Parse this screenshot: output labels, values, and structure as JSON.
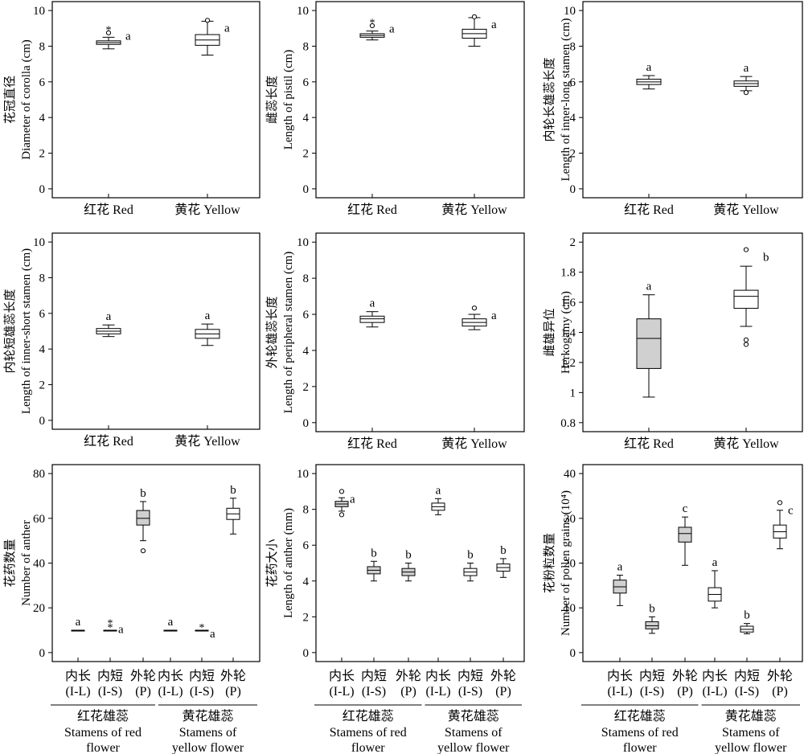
{
  "figure": {
    "background": "#ffffff",
    "box_fill_red": "#d0d0d0",
    "box_fill_white": "#ffffff",
    "stroke": "#000000"
  },
  "chart_data": [
    {
      "type": "box",
      "ylabel": [
        "花冠直径",
        "Diameter of corolla (cm)"
      ],
      "ylim": [
        -0.5,
        10.5
      ],
      "yticks": [
        0,
        2,
        4,
        6,
        8,
        10
      ],
      "categories": [
        "红花 Red",
        "黄花 Yellow"
      ],
      "boxes": [
        {
          "min": 7.85,
          "q1": 8.1,
          "median": 8.2,
          "q3": 8.3,
          "max": 8.5,
          "outliers": [
            8.75
          ],
          "extremes": [
            9.0
          ],
          "sig": "a",
          "fill": "white"
        },
        {
          "min": 7.5,
          "q1": 8.05,
          "median": 8.35,
          "q3": 8.65,
          "max": 9.4,
          "outliers": [
            9.45
          ],
          "extremes": [],
          "sig": "a",
          "fill": "white"
        }
      ]
    },
    {
      "type": "box",
      "ylabel": [
        "雌蕊长度",
        "Length of pistil (cm)"
      ],
      "ylim": [
        -0.5,
        10.5
      ],
      "yticks": [
        0,
        2,
        4,
        6,
        8,
        10
      ],
      "categories": [
        "红花 Red",
        "黄花 Yellow"
      ],
      "boxes": [
        {
          "min": 8.35,
          "q1": 8.5,
          "median": 8.6,
          "q3": 8.7,
          "max": 8.85,
          "outliers": [
            9.15
          ],
          "extremes": [
            9.4
          ],
          "sig": "a",
          "fill": "white"
        },
        {
          "min": 8.0,
          "q1": 8.45,
          "median": 8.7,
          "q3": 8.95,
          "max": 9.6,
          "outliers": [
            9.65
          ],
          "extremes": [],
          "sig": "a",
          "fill": "white"
        }
      ]
    },
    {
      "type": "box",
      "ylabel": [
        "内轮长雄蕊长度",
        "Length of inner-long stamen (cm)"
      ],
      "ylim": [
        -0.5,
        10.5
      ],
      "yticks": [
        0,
        2,
        4,
        6,
        8,
        10
      ],
      "categories": [
        "红花 Red",
        "黄花 Yellow"
      ],
      "boxes": [
        {
          "min": 5.6,
          "q1": 5.85,
          "median": 6.0,
          "q3": 6.15,
          "max": 6.35,
          "outliers": [],
          "extremes": [],
          "sig": "a",
          "fill": "white"
        },
        {
          "min": 5.5,
          "q1": 5.75,
          "median": 5.9,
          "q3": 6.05,
          "max": 6.3,
          "outliers": [
            5.4
          ],
          "extremes": [],
          "sig": "a",
          "fill": "white"
        }
      ]
    },
    {
      "type": "box",
      "ylabel": [
        "内轮短雄蕊长度",
        "Length of inner-short stamen (cm)"
      ],
      "ylim": [
        -0.5,
        10.5
      ],
      "yticks": [
        0,
        2,
        4,
        6,
        8,
        10
      ],
      "categories": [
        "红花 Red",
        "黄花 Yellow"
      ],
      "boxes": [
        {
          "min": 4.7,
          "q1": 4.85,
          "median": 5.0,
          "q3": 5.15,
          "max": 5.35,
          "outliers": [],
          "extremes": [],
          "sig": "a",
          "fill": "white"
        },
        {
          "min": 4.2,
          "q1": 4.6,
          "median": 4.85,
          "q3": 5.1,
          "max": 5.4,
          "outliers": [],
          "extremes": [],
          "sig": "a",
          "fill": "white"
        }
      ]
    },
    {
      "type": "box",
      "ylabel": [
        "外轮雄蕊长度",
        "Length of peripheral stamen (cm)"
      ],
      "ylim": [
        -0.5,
        10.5
      ],
      "yticks": [
        0,
        2,
        4,
        6,
        8,
        10
      ],
      "categories": [
        "红花 Red",
        "黄花 Yellow"
      ],
      "boxes": [
        {
          "min": 5.3,
          "q1": 5.55,
          "median": 5.75,
          "q3": 5.9,
          "max": 6.15,
          "outliers": [],
          "extremes": [],
          "sig": "a",
          "fill": "white"
        },
        {
          "min": 5.15,
          "q1": 5.35,
          "median": 5.55,
          "q3": 5.75,
          "max": 6.0,
          "outliers": [
            6.35
          ],
          "extremes": [],
          "sig": "a",
          "fill": "white"
        }
      ]
    },
    {
      "type": "box",
      "ylabel": [
        "雌雄异位",
        "Herkogamy (cm)"
      ],
      "ylim": [
        0.74,
        2.06
      ],
      "yticks": [
        0.8,
        1.0,
        1.2,
        1.4,
        1.6,
        1.8,
        2.0
      ],
      "categories": [
        "红花 Red",
        "黄花 Yellow"
      ],
      "boxes": [
        {
          "min": 0.97,
          "q1": 1.16,
          "median": 1.36,
          "q3": 1.49,
          "max": 1.65,
          "outliers": [],
          "extremes": [],
          "sig": "a",
          "fill": "gray"
        },
        {
          "min": 1.44,
          "q1": 1.56,
          "median": 1.64,
          "q3": 1.68,
          "max": 1.84,
          "outliers": [
            1.95,
            1.35,
            1.32
          ],
          "extremes": [],
          "sig": "b",
          "fill": "white"
        }
      ]
    },
    {
      "type": "box",
      "ylabel": [
        "花药数量",
        "Number of anther"
      ],
      "ylim": [
        -4,
        84
      ],
      "yticks": [
        0,
        20,
        40,
        60,
        80
      ],
      "groups": [
        "内长 (I-L)",
        "内短 (I-S)",
        "外轮 (P)",
        "内长 (I-L)",
        "内短 (I-S)",
        "外轮 (P)"
      ],
      "boxes": [
        {
          "min": 10,
          "q1": 10,
          "median": 10,
          "q3": 10,
          "max": 10,
          "outliers": [],
          "extremes": [],
          "sig": "a",
          "fill": "gray"
        },
        {
          "min": 10,
          "q1": 10,
          "median": 10,
          "q3": 10,
          "max": 10,
          "outliers": [],
          "extremes": [
            11.8,
            13.8
          ],
          "sig": "a",
          "fill": "gray"
        },
        {
          "min": 50,
          "q1": 57,
          "median": 60,
          "q3": 63.5,
          "max": 67.5,
          "outliers": [
            45.5
          ],
          "extremes": [],
          "sig": "b",
          "fill": "gray"
        },
        {
          "min": 10,
          "q1": 10,
          "median": 10,
          "q3": 10,
          "max": 10,
          "outliers": [],
          "extremes": [],
          "sig": "a",
          "fill": "white"
        },
        {
          "min": 10,
          "q1": 10,
          "median": 10,
          "q3": 10,
          "max": 10,
          "outliers": [],
          "extremes": [
            11.8
          ],
          "sig": "a",
          "fill": "white"
        },
        {
          "min": 53,
          "q1": 59.5,
          "median": 62,
          "q3": 64.5,
          "max": 69,
          "outliers": [],
          "extremes": [],
          "sig": "b",
          "fill": "white"
        }
      ],
      "groupLabels": [
        {
          "cn": "红花雄蕊",
          "en1": "Stamens of red",
          "en2": "flower"
        },
        {
          "cn": "黄花雄蕊",
          "en1": "Stamens of",
          "en2": "yellow flower"
        }
      ]
    },
    {
      "type": "box",
      "ylabel": [
        "花药大小",
        "Length of anther (mm)"
      ],
      "ylim": [
        -0.5,
        10.5
      ],
      "yticks": [
        0,
        2,
        4,
        6,
        8,
        10
      ],
      "groups": [
        "内长 (I-L)",
        "内短 (I-S)",
        "外轮 (P)",
        "内长 (I-L)",
        "内短 (I-S)",
        "外轮 (P)"
      ],
      "boxes": [
        {
          "min": 7.9,
          "q1": 8.15,
          "median": 8.3,
          "q3": 8.45,
          "max": 8.65,
          "outliers": [
            7.7,
            9.0
          ],
          "extremes": [],
          "sig": "a",
          "fill": "gray"
        },
        {
          "min": 4.0,
          "q1": 4.4,
          "median": 4.6,
          "q3": 4.8,
          "max": 5.1,
          "outliers": [],
          "extremes": [],
          "sig": "b",
          "fill": "gray"
        },
        {
          "min": 4.0,
          "q1": 4.3,
          "median": 4.5,
          "q3": 4.7,
          "max": 5.0,
          "outliers": [],
          "extremes": [],
          "sig": "b",
          "fill": "gray"
        },
        {
          "min": 7.7,
          "q1": 7.95,
          "median": 8.15,
          "q3": 8.35,
          "max": 8.6,
          "outliers": [],
          "extremes": [],
          "sig": "a",
          "fill": "white"
        },
        {
          "min": 4.0,
          "q1": 4.3,
          "median": 4.5,
          "q3": 4.7,
          "max": 5.0,
          "outliers": [],
          "extremes": [],
          "sig": "b",
          "fill": "white"
        },
        {
          "min": 4.2,
          "q1": 4.55,
          "median": 4.75,
          "q3": 4.95,
          "max": 5.25,
          "outliers": [],
          "extremes": [],
          "sig": "b",
          "fill": "white"
        }
      ],
      "groupLabels": [
        {
          "cn": "红花雄蕊",
          "en1": "Stamens of red",
          "en2": "flower"
        },
        {
          "cn": "黄花雄蕊",
          "en1": "Stamens of",
          "en2": "yellow flower"
        }
      ]
    },
    {
      "type": "box",
      "ylabel": [
        "花粉粒数量",
        "Number of pollen grains (10⁴)"
      ],
      "ylim": [
        -2,
        42
      ],
      "yticks": [
        0,
        10,
        20,
        30,
        40
      ],
      "groups": [
        "内长 (I-L)",
        "内短 (I-S)",
        "外轮 (P)",
        "内长 (I-L)",
        "内短 (I-S)",
        "外轮 (P)"
      ],
      "boxes": [
        {
          "min": 10.5,
          "q1": 13.3,
          "median": 14.7,
          "q3": 16.2,
          "max": 17.3,
          "outliers": [],
          "extremes": [],
          "sig": "a",
          "fill": "gray"
        },
        {
          "min": 4.3,
          "q1": 5.3,
          "median": 6.0,
          "q3": 6.9,
          "max": 8.0,
          "outliers": [],
          "extremes": [],
          "sig": "b",
          "fill": "gray"
        },
        {
          "min": 19.5,
          "q1": 24.7,
          "median": 26.6,
          "q3": 28.0,
          "max": 30.3,
          "outliers": [],
          "extremes": [],
          "sig": "c",
          "fill": "gray"
        },
        {
          "min": 10.0,
          "q1": 11.5,
          "median": 13.0,
          "q3": 14.5,
          "max": 18.3,
          "outliers": [],
          "extremes": [],
          "sig": "a",
          "fill": "white"
        },
        {
          "min": 4.2,
          "q1": 4.6,
          "median": 5.2,
          "q3": 5.9,
          "max": 6.5,
          "outliers": [],
          "extremes": [],
          "sig": "b",
          "fill": "white"
        },
        {
          "min": 23.2,
          "q1": 25.6,
          "median": 27.0,
          "q3": 28.5,
          "max": 31.8,
          "outliers": [
            33.5
          ],
          "extremes": [],
          "sig": "c",
          "fill": "white"
        }
      ],
      "groupLabels": [
        {
          "cn": "红花雄蕊",
          "en1": "Stamens of red",
          "en2": "flower"
        },
        {
          "cn": "黄花雄蕊",
          "en1": "Stamens of",
          "en2": "yellow flower"
        }
      ]
    }
  ]
}
